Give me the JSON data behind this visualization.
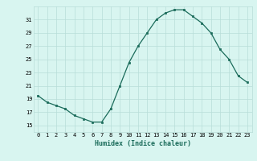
{
  "x": [
    0,
    1,
    2,
    3,
    4,
    5,
    6,
    7,
    8,
    9,
    10,
    11,
    12,
    13,
    14,
    15,
    16,
    17,
    18,
    19,
    20,
    21,
    22,
    23
  ],
  "y": [
    19.5,
    18.5,
    18.0,
    17.5,
    16.5,
    16.0,
    15.5,
    15.5,
    17.5,
    21.0,
    24.5,
    27.0,
    29.0,
    31.0,
    32.0,
    32.5,
    32.5,
    31.5,
    30.5,
    29.0,
    26.5,
    25.0,
    22.5,
    21.5
  ],
  "xlabel": "Humidex (Indice chaleur)",
  "ylim": [
    14,
    33
  ],
  "yticks": [
    15,
    17,
    19,
    21,
    23,
    25,
    27,
    29,
    31
  ],
  "xticks": [
    0,
    1,
    2,
    3,
    4,
    5,
    6,
    7,
    8,
    9,
    10,
    11,
    12,
    13,
    14,
    15,
    16,
    17,
    18,
    19,
    20,
    21,
    22,
    23
  ],
  "line_color": "#1a6b5a",
  "marker_color": "#1a6b5a",
  "bg_color": "#d8f5f0",
  "grid_color": "#b8ddd8",
  "axes_bg": "#d8f5f0"
}
